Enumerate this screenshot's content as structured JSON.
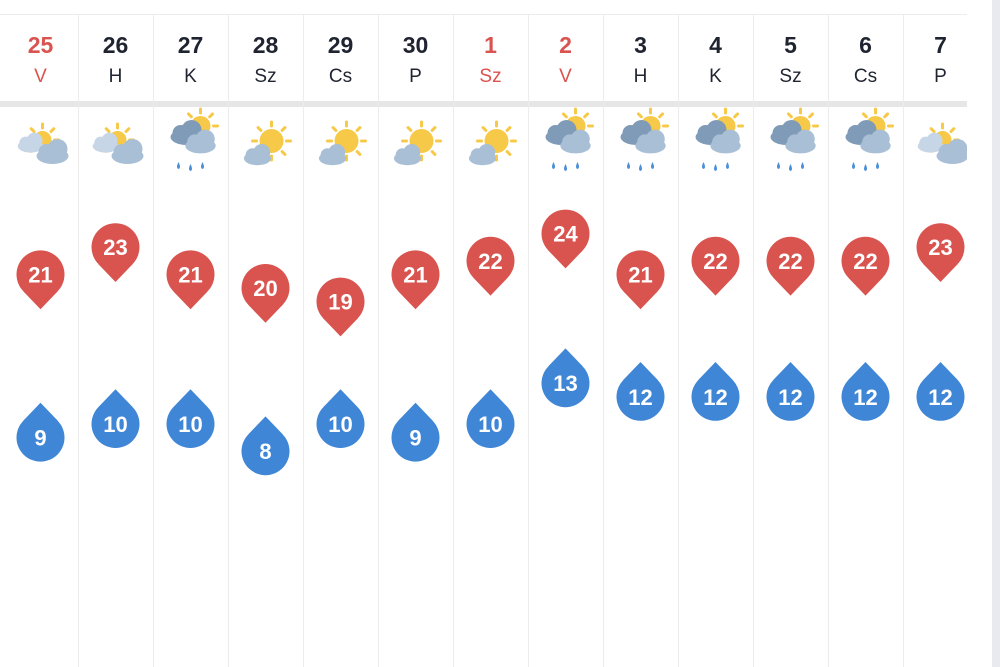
{
  "chart_data": {
    "type": "table",
    "days": [
      {
        "date": "25",
        "weekday": "V",
        "weekend": true,
        "icon": "partly-cloudy-icon",
        "max": 21,
        "min": 9
      },
      {
        "date": "26",
        "weekday": "H",
        "weekend": false,
        "icon": "partly-cloudy-icon",
        "max": 23,
        "min": 10
      },
      {
        "date": "27",
        "weekday": "K",
        "weekend": false,
        "icon": "rain-showers-icon",
        "max": 21,
        "min": 10
      },
      {
        "date": "28",
        "weekday": "Sz",
        "weekend": false,
        "icon": "mostly-sunny-icon",
        "max": 20,
        "min": 8
      },
      {
        "date": "29",
        "weekday": "Cs",
        "weekend": false,
        "icon": "mostly-sunny-icon",
        "max": 19,
        "min": 10
      },
      {
        "date": "30",
        "weekday": "P",
        "weekend": false,
        "icon": "mostly-sunny-icon",
        "max": 21,
        "min": 9
      },
      {
        "date": "1",
        "weekday": "Sz",
        "weekend": true,
        "icon": "mostly-sunny-icon",
        "max": 22,
        "min": 10
      },
      {
        "date": "2",
        "weekday": "V",
        "weekend": true,
        "icon": "rain-showers-icon",
        "max": 24,
        "min": 13
      },
      {
        "date": "3",
        "weekday": "H",
        "weekend": false,
        "icon": "rain-showers-icon",
        "max": 21,
        "min": 12
      },
      {
        "date": "4",
        "weekday": "K",
        "weekend": false,
        "icon": "rain-showers-icon",
        "max": 22,
        "min": 12
      },
      {
        "date": "5",
        "weekday": "Sz",
        "weekend": false,
        "icon": "rain-showers-icon",
        "max": 22,
        "min": 12
      },
      {
        "date": "6",
        "weekday": "Cs",
        "weekend": false,
        "icon": "rain-showers-icon",
        "max": 22,
        "min": 12
      },
      {
        "date": "7",
        "weekday": "P",
        "weekend": false,
        "icon": "partly-cloudy-icon",
        "max": 23,
        "min": 12
      }
    ],
    "series": [
      {
        "key": "max",
        "values": [
          21,
          23,
          21,
          20,
          19,
          21,
          22,
          24,
          21,
          22,
          22,
          22,
          23
        ]
      },
      {
        "key": "min",
        "values": [
          9,
          10,
          10,
          8,
          10,
          9,
          10,
          13,
          12,
          12,
          12,
          12,
          12
        ]
      }
    ],
    "colors": {
      "max": "#d9534f",
      "min": "#3f86d6",
      "weekend_text": "#d9534f",
      "text": "#1f2430",
      "sun": "#f7c948",
      "cloud": "#a9bfd6",
      "cloud_dark": "#7f9bb8",
      "rain": "#4b90d9"
    }
  }
}
